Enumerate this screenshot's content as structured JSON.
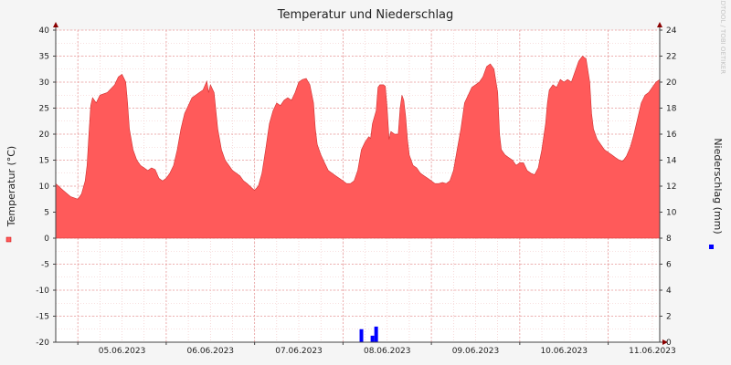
{
  "chart_data": {
    "type": "area",
    "title": "Temperatur und Niederschlag",
    "watermark": "RRDTOOL / TOBI OETIKER",
    "ylabel_left": "Temperatur (°C)",
    "ylabel_right": "Niederschlag (mm)",
    "ylim_left": [
      -20,
      40
    ],
    "ylim_right": [
      0,
      24
    ],
    "x_unit": "hours since first day label",
    "xlim_hours": [
      -6,
      158
    ],
    "x_ticks": [
      {
        "label": "05.06.2023",
        "h": 0
      },
      {
        "label": "06.06.2023",
        "h": 24
      },
      {
        "label": "07.06.2023",
        "h": 48
      },
      {
        "label": "08.06.2023",
        "h": 72
      },
      {
        "label": "09.06.2023",
        "h": 96
      },
      {
        "label": "10.06.2023",
        "h": 120
      },
      {
        "label": "11.06.2023",
        "h": 144
      }
    ],
    "y_ticks_left": [
      40,
      35,
      30,
      25,
      20,
      15,
      10,
      5,
      0,
      -5,
      -10,
      -15,
      -20
    ],
    "y_ticks_right": [
      24,
      22,
      20,
      18,
      16,
      14,
      12,
      10,
      8,
      6,
      4,
      2,
      0
    ],
    "colors": {
      "temperature": "#ff5a5a",
      "precipitation": "#0000ff",
      "grid": "#f1c0c0",
      "axis": "#444444",
      "arrow": "#8b0000",
      "background": "#ffffff"
    },
    "series": [
      {
        "name": "Temperatur",
        "axis": "left",
        "points": [
          [
            -6,
            10.5
          ],
          [
            -4,
            9.2
          ],
          [
            -2,
            8
          ],
          [
            0,
            7.5
          ],
          [
            1,
            8.5
          ],
          [
            2,
            11
          ],
          [
            2.5,
            14
          ],
          [
            3,
            20
          ],
          [
            3.5,
            25.5
          ],
          [
            4,
            27
          ],
          [
            5,
            26
          ],
          [
            6,
            27.5
          ],
          [
            8,
            28
          ],
          [
            10,
            29.5
          ],
          [
            11,
            31
          ],
          [
            12,
            31.5
          ],
          [
            13,
            30
          ],
          [
            13.5,
            26
          ],
          [
            14,
            21
          ],
          [
            15,
            17
          ],
          [
            16,
            15
          ],
          [
            17,
            14
          ],
          [
            18,
            13.5
          ],
          [
            19,
            13
          ],
          [
            20,
            13.5
          ],
          [
            21,
            13.2
          ],
          [
            22,
            11.5
          ],
          [
            23,
            11
          ],
          [
            24,
            11.5
          ],
          [
            25,
            12.5
          ],
          [
            26,
            14
          ],
          [
            27,
            17
          ],
          [
            28,
            21
          ],
          [
            29,
            24
          ],
          [
            30,
            25.5
          ],
          [
            31,
            27
          ],
          [
            32,
            27.5
          ],
          [
            33,
            28
          ],
          [
            34,
            28.5
          ],
          [
            35,
            30.2
          ],
          [
            35.5,
            28
          ],
          [
            36,
            29.5
          ],
          [
            37,
            28
          ],
          [
            38,
            21
          ],
          [
            39,
            17
          ],
          [
            40,
            15
          ],
          [
            41,
            14
          ],
          [
            42,
            13
          ],
          [
            43,
            12.5
          ],
          [
            44,
            12
          ],
          [
            45,
            11
          ],
          [
            46,
            10.5
          ],
          [
            47,
            9.8
          ],
          [
            48,
            9.2
          ],
          [
            49,
            10
          ],
          [
            50,
            12.5
          ],
          [
            51,
            17
          ],
          [
            52,
            22
          ],
          [
            53,
            24.5
          ],
          [
            54,
            26
          ],
          [
            55,
            25.5
          ],
          [
            56,
            26.5
          ],
          [
            57,
            27
          ],
          [
            58,
            26.5
          ],
          [
            59,
            28
          ],
          [
            60,
            30
          ],
          [
            61,
            30.5
          ],
          [
            62,
            30.7
          ],
          [
            63,
            29.5
          ],
          [
            64,
            26
          ],
          [
            64.5,
            21
          ],
          [
            65,
            18
          ],
          [
            66,
            16
          ],
          [
            67,
            14.5
          ],
          [
            68,
            13
          ],
          [
            69,
            12.5
          ],
          [
            70,
            12
          ],
          [
            71,
            11.5
          ],
          [
            72,
            11
          ],
          [
            73,
            10.5
          ],
          [
            74,
            10.5
          ],
          [
            75,
            11
          ],
          [
            76,
            13
          ],
          [
            77,
            17
          ],
          [
            78,
            18.5
          ],
          [
            79,
            19.5
          ],
          [
            79.5,
            19.2
          ],
          [
            80,
            22
          ],
          [
            81,
            24.5
          ],
          [
            81.5,
            29
          ],
          [
            82,
            29.5
          ],
          [
            83,
            29.5
          ],
          [
            83.5,
            29.2
          ],
          [
            84,
            25
          ],
          [
            84.5,
            19
          ],
          [
            85,
            20.5
          ],
          [
            86,
            20
          ],
          [
            87,
            20
          ],
          [
            87.5,
            25
          ],
          [
            88,
            27.5
          ],
          [
            88.5,
            26.5
          ],
          [
            89,
            23.5
          ],
          [
            89.5,
            19
          ],
          [
            90,
            16
          ],
          [
            91,
            14
          ],
          [
            92,
            13.5
          ],
          [
            93,
            12.5
          ],
          [
            94,
            12
          ],
          [
            95,
            11.5
          ],
          [
            96,
            11
          ],
          [
            97,
            10.5
          ],
          [
            98,
            10.5
          ],
          [
            99,
            10.7
          ],
          [
            100,
            10.5
          ],
          [
            101,
            11
          ],
          [
            102,
            13
          ],
          [
            103,
            17
          ],
          [
            104,
            21
          ],
          [
            105,
            26
          ],
          [
            106,
            27.5
          ],
          [
            107,
            29
          ],
          [
            108,
            29.5
          ],
          [
            109,
            30
          ],
          [
            110,
            31
          ],
          [
            111,
            33
          ],
          [
            112,
            33.5
          ],
          [
            113,
            32.5
          ],
          [
            114,
            28
          ],
          [
            114.5,
            20
          ],
          [
            115,
            17
          ],
          [
            116,
            16
          ],
          [
            117,
            15.5
          ],
          [
            118,
            15
          ],
          [
            119,
            14
          ],
          [
            120,
            14.5
          ],
          [
            121,
            14.5
          ],
          [
            122,
            13
          ],
          [
            123,
            12.5
          ],
          [
            124,
            12.2
          ],
          [
            125,
            13.5
          ],
          [
            126,
            17
          ],
          [
            127,
            22
          ],
          [
            127.5,
            26
          ],
          [
            128,
            28.5
          ],
          [
            129,
            29.5
          ],
          [
            130,
            29
          ],
          [
            131,
            30.5
          ],
          [
            132,
            30
          ],
          [
            133,
            30.5
          ],
          [
            134,
            30
          ],
          [
            135,
            32
          ],
          [
            136,
            34
          ],
          [
            137,
            35
          ],
          [
            138,
            34.5
          ],
          [
            139,
            30
          ],
          [
            139.5,
            24
          ],
          [
            140,
            21
          ],
          [
            141,
            19
          ],
          [
            142,
            18
          ],
          [
            143,
            17
          ],
          [
            144,
            16.5
          ],
          [
            145,
            16
          ],
          [
            146,
            15.5
          ],
          [
            147,
            15
          ],
          [
            148,
            14.8
          ],
          [
            149,
            15.8
          ],
          [
            150,
            17.5
          ],
          [
            151,
            20
          ],
          [
            152,
            23
          ],
          [
            153,
            26
          ],
          [
            154,
            27.5
          ],
          [
            155,
            28
          ],
          [
            156,
            29
          ],
          [
            157,
            30
          ],
          [
            158,
            30.5
          ]
        ]
      },
      {
        "name": "Niederschlag",
        "axis": "right",
        "bars": [
          {
            "h": 77,
            "value": 1.0
          },
          {
            "h": 80,
            "value": 0.5
          },
          {
            "h": 81,
            "value": 1.2
          }
        ]
      }
    ]
  }
}
